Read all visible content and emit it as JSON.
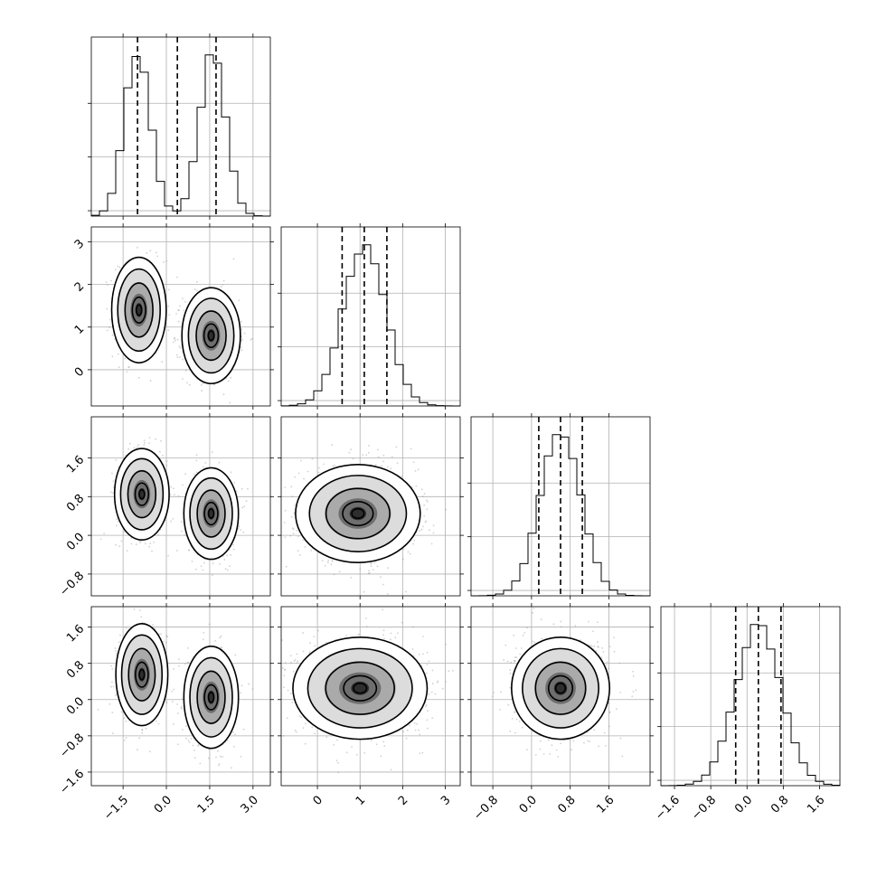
{
  "chart_data": {
    "type": "corner",
    "grid": true,
    "n_params": 4,
    "quantile_fractions": [
      0.16,
      0.5,
      0.84
    ],
    "parameters": [
      {
        "range": [
          -2.6,
          3.6
        ],
        "ticks": [
          -1.5,
          0.0,
          1.5,
          3.0
        ],
        "tick_labels": [
          "−1.5",
          "0.0",
          "1.5",
          "3.0"
        ],
        "quantiles": [
          -1.0,
          0.38,
          1.72
        ],
        "modes": [
          {
            "mean": -1.0,
            "sd": 0.45,
            "weight": 0.5
          },
          {
            "mean": 1.6,
            "sd": 0.45,
            "weight": 0.5
          }
        ]
      },
      {
        "range": [
          -0.85,
          3.35
        ],
        "ticks": [
          0,
          1,
          2,
          3
        ],
        "tick_labels": [
          "0",
          "1",
          "2",
          "3"
        ],
        "quantiles": [
          0.58,
          1.1,
          1.63
        ],
        "modes": [
          {
            "mean": 1.1,
            "sd": 0.5,
            "weight": 1
          }
        ]
      },
      {
        "range": [
          -1.25,
          2.45
        ],
        "ticks": [
          -0.8,
          0.0,
          0.8,
          1.6
        ],
        "tick_labels": [
          "−0.8",
          "0.0",
          "0.8",
          "1.6"
        ],
        "quantiles": [
          0.15,
          0.6,
          1.05
        ],
        "modes": [
          {
            "mean": 0.6,
            "sd": 0.42,
            "weight": 1
          }
        ]
      },
      {
        "range": [
          -1.9,
          2.05
        ],
        "ticks": [
          -1.6,
          -0.8,
          0.0,
          0.8,
          1.6
        ],
        "tick_labels": [
          "−1.6",
          "−0.8",
          "0.0",
          "0.8",
          "1.6"
        ],
        "quantiles": [
          -0.25,
          0.25,
          0.75
        ],
        "modes": [
          {
            "mean": 0.25,
            "sd": 0.5,
            "weight": 1
          }
        ]
      }
    ],
    "histogram_yticks": 3,
    "pairs": [
      {
        "row": 1,
        "col": 0,
        "clusters": [
          {
            "x": -0.95,
            "y": 1.4,
            "sx": 0.42,
            "sy": 0.55
          },
          {
            "x": 1.55,
            "y": 0.8,
            "sx": 0.45,
            "sy": 0.5
          }
        ]
      },
      {
        "row": 2,
        "col": 0,
        "clusters": [
          {
            "x": -0.85,
            "y": 0.85,
            "sx": 0.42,
            "sy": 0.42
          },
          {
            "x": 1.55,
            "y": 0.45,
            "sx": 0.42,
            "sy": 0.42
          }
        ]
      },
      {
        "row": 2,
        "col": 1,
        "clusters": [
          {
            "x": 0.95,
            "y": 0.45,
            "sx": 0.65,
            "sy": 0.45
          }
        ]
      },
      {
        "row": 3,
        "col": 0,
        "clusters": [
          {
            "x": -0.85,
            "y": 0.55,
            "sx": 0.4,
            "sy": 0.5
          },
          {
            "x": 1.55,
            "y": 0.05,
            "sx": 0.42,
            "sy": 0.5
          }
        ]
      },
      {
        "row": 3,
        "col": 1,
        "clusters": [
          {
            "x": 1.0,
            "y": 0.25,
            "sx": 0.7,
            "sy": 0.5
          }
        ]
      },
      {
        "row": 3,
        "col": 2,
        "clusters": [
          {
            "x": 0.6,
            "y": 0.25,
            "sx": 0.45,
            "sy": 0.5
          }
        ]
      }
    ]
  }
}
